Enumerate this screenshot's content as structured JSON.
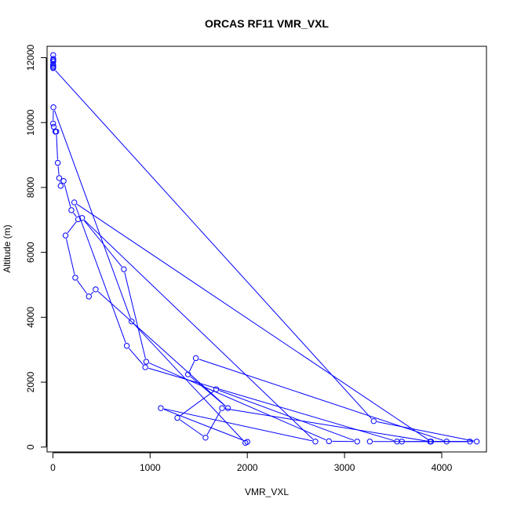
{
  "colors": {
    "series": "#0000ff",
    "axis": "#000000",
    "background": "#ffffff"
  },
  "chart_data": {
    "type": "line",
    "title": "ORCAS RF11 VMR_VXL",
    "xlabel": "VMR_VXL",
    "ylabel": "Altitude (m)",
    "xlim": [
      -60,
      4460
    ],
    "ylim": [
      -150,
      12350
    ],
    "xticks": [
      0,
      1000,
      2000,
      3000,
      4000
    ],
    "yticks": [
      0,
      2000,
      4000,
      6000,
      8000,
      10000,
      12000
    ],
    "grid": false,
    "legend": "none",
    "marker": "open-circle",
    "series": [
      {
        "points": [
          [
            3,
            12080
          ],
          [
            4,
            11960
          ],
          [
            3,
            11920
          ],
          [
            4,
            11880
          ],
          [
            2,
            11790
          ],
          [
            3,
            11740
          ],
          [
            2,
            11700
          ],
          [
            3,
            11680
          ],
          [
            3300,
            800
          ],
          [
            4360,
            170
          ],
          [
            3880,
            170
          ],
          [
            1740,
            1200
          ],
          [
            1570,
            290
          ],
          [
            1280,
            900
          ],
          [
            1680,
            1780
          ],
          [
            3130,
            170
          ],
          [
            2840,
            180
          ],
          [
            960,
            2630
          ],
          [
            730,
            5480
          ],
          [
            300,
            7060
          ],
          [
            2700,
            170
          ],
          [
            1110,
            1200
          ],
          [
            2000,
            160
          ],
          [
            1980,
            130
          ],
          [
            810,
            3870
          ],
          [
            5,
            10470
          ],
          [
            2,
            9970
          ],
          [
            8,
            9870
          ],
          [
            25,
            9720
          ],
          [
            35,
            9720
          ],
          [
            50,
            8760
          ],
          [
            65,
            8290
          ],
          [
            80,
            8050
          ],
          [
            110,
            8200
          ],
          [
            190,
            7300
          ],
          [
            260,
            7020
          ],
          [
            130,
            6520
          ],
          [
            230,
            5220
          ],
          [
            370,
            4640
          ],
          [
            440,
            4860
          ],
          [
            1800,
            1200
          ],
          [
            1390,
            2240
          ],
          [
            1470,
            2740
          ],
          [
            4050,
            170
          ],
          [
            3590,
            170
          ],
          [
            3540,
            170
          ],
          [
            950,
            2460
          ],
          [
            760,
            3120
          ],
          [
            220,
            7540
          ],
          [
            3890,
            170
          ],
          [
            4290,
            170
          ],
          [
            3260,
            170
          ]
        ]
      }
    ]
  }
}
